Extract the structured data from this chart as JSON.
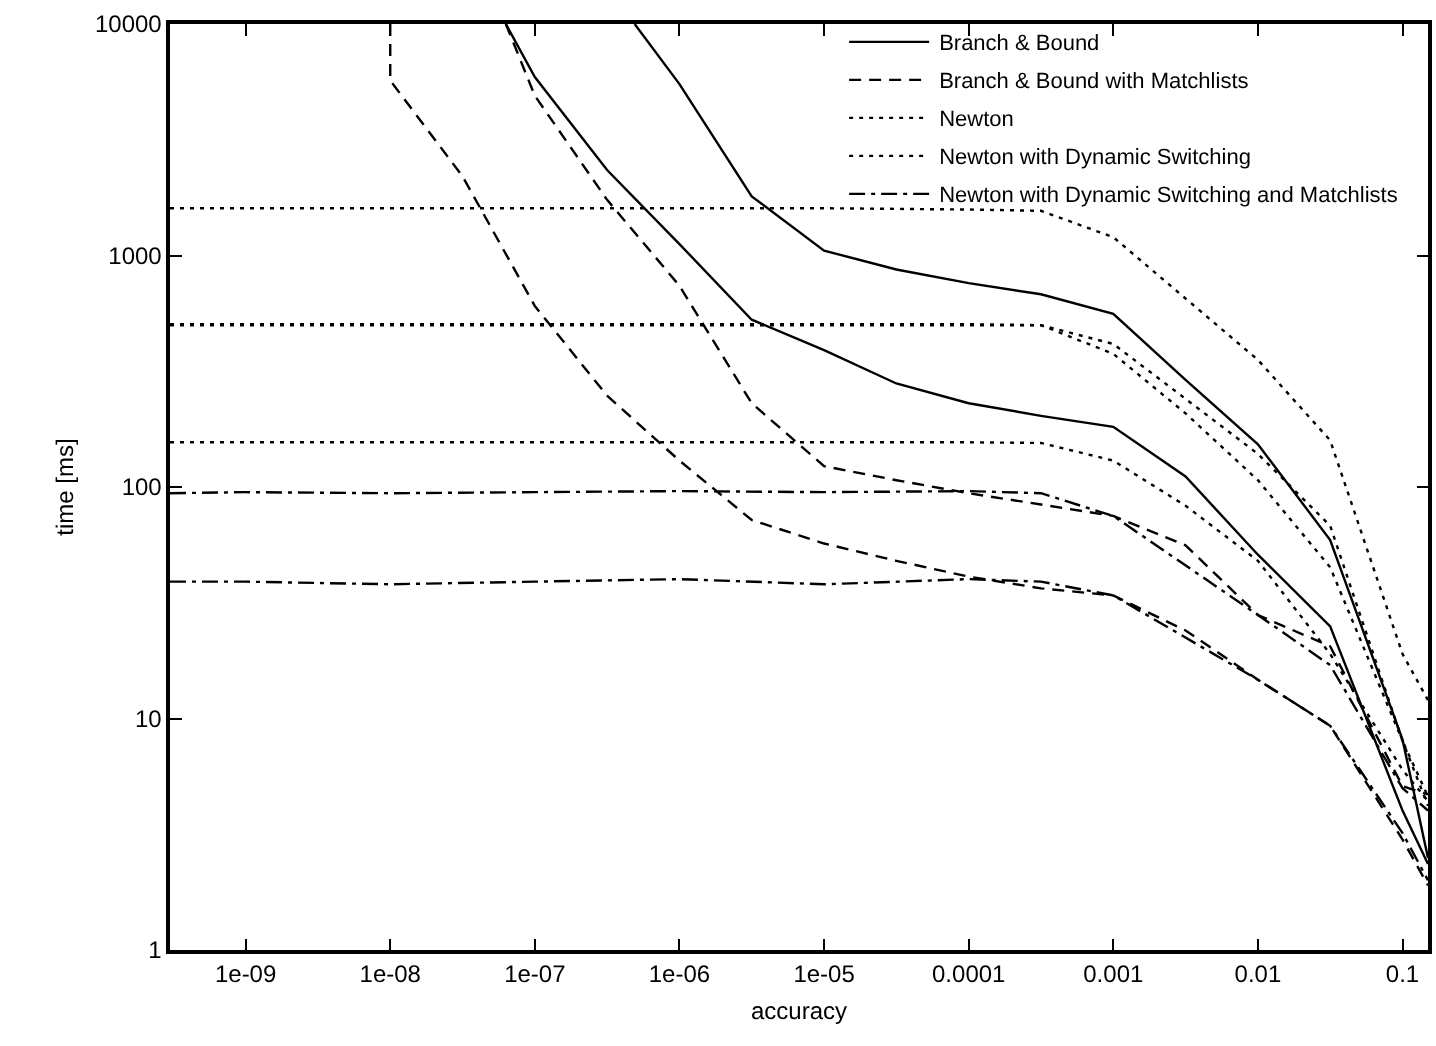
{
  "chart_data": {
    "type": "line",
    "xlabel": "accuracy",
    "ylabel": "time [ms]",
    "log": "xy",
    "legend": "top right",
    "marker": "none",
    "xlim": [
      3e-10,
      0.15
    ],
    "xticks": [
      {
        "value": 1e-09,
        "label": "1e-09"
      },
      {
        "value": 1e-08,
        "label": "1e-08"
      },
      {
        "value": 1e-07,
        "label": "1e-07"
      },
      {
        "value": 1e-06,
        "label": "1e-06"
      },
      {
        "value": 1e-05,
        "label": "1e-05"
      },
      0.0001,
      0.001,
      0.01,
      0.1
    ],
    "ylim": [
      1,
      10000
    ],
    "yticks": [
      1,
      10,
      100,
      1000,
      10000
    ],
    "series": [
      {
        "name": "Branch & Bound",
        "color": "#000000",
        "line_style": "solid",
        "x": [
          4.9e-07,
          1e-06,
          3.16e-06,
          1e-05,
          3.16e-05,
          0.0001,
          0.000316,
          0.001,
          0.00316,
          0.01,
          0.0316,
          0.1,
          0.15
        ],
        "values": [
          10000,
          5500,
          1800,
          1050,
          870,
          760,
          680,
          560,
          290,
          153,
          59,
          8.1,
          2.5
        ]
      },
      {
        "name": null,
        "color": "#000000",
        "line_style": "solid",
        "x": [
          6.3e-08,
          1e-07,
          3.16e-07,
          1e-06,
          3.16e-06,
          1e-05,
          3.16e-05,
          0.0001,
          0.000316,
          0.001,
          0.00316,
          0.01,
          0.0316,
          0.1,
          0.15
        ],
        "values": [
          10000,
          5900,
          2340,
          1120,
          528,
          390,
          280,
          230,
          203,
          182,
          111,
          51,
          25,
          4.0,
          2.35
        ]
      },
      {
        "name": "Branch & Bound with Matchlists",
        "color": "#000000",
        "line_style": "dashed",
        "x": [
          1e-08,
          1e-08,
          3.16e-08,
          1e-07,
          3.16e-07,
          1e-06,
          3.16e-06,
          1e-05,
          3.16e-05,
          0.0001,
          0.000316,
          0.001,
          0.00316,
          0.01,
          0.0316,
          0.1,
          0.15
        ],
        "values": [
          10000,
          5700,
          2200,
          605,
          248,
          130,
          72,
          57,
          48,
          41,
          36.5,
          34,
          24,
          14.7,
          9.3,
          3.0,
          1.9
        ]
      },
      {
        "name": null,
        "color": "#000000",
        "line_style": "dashed",
        "x": [
          6.3e-08,
          1e-07,
          3.16e-07,
          1e-06,
          3.16e-06,
          1e-05,
          3.16e-05,
          0.0001,
          0.000316,
          0.001,
          0.00316,
          0.01,
          0.0316,
          0.1,
          0.15
        ],
        "values": [
          10000,
          4900,
          1740,
          740,
          230,
          123,
          107,
          94,
          84,
          75,
          56,
          28,
          20.5,
          5.1,
          4.7
        ]
      },
      {
        "name": "Newton",
        "color": "#000000",
        "line_style": "dotted",
        "x": [
          3e-10,
          1e-09,
          1e-08,
          1e-07,
          1e-06,
          1e-05,
          0.0001,
          0.000316,
          0.001,
          0.01,
          0.0316,
          0.1,
          0.15
        ],
        "values": [
          1600,
          1600,
          1600,
          1600,
          1600,
          1600,
          1580,
          1560,
          1200,
          354,
          159,
          19,
          12
        ]
      },
      {
        "name": null,
        "color": "#000000",
        "line_style": "dotted",
        "x": [
          3e-10,
          1e-09,
          1e-08,
          1e-07,
          1e-06,
          1e-05,
          0.0001,
          0.000316,
          0.001,
          0.01,
          0.0316,
          0.1,
          0.15
        ],
        "values": [
          500,
          500,
          500,
          500,
          500,
          500,
          500,
          500,
          415,
          139,
          68,
          8,
          4.6
        ]
      },
      {
        "name": "Newton with Dynamic Switching",
        "color": "#000000",
        "line_style": "dotted",
        "x": [
          3e-10,
          1e-09,
          1e-08,
          1e-07,
          1e-06,
          1e-05,
          0.0001,
          0.000316,
          0.001,
          0.00316,
          0.01,
          0.0316,
          0.1,
          0.15
        ],
        "values": [
          505,
          505,
          505,
          505,
          505,
          505,
          505,
          500,
          376,
          208,
          107,
          45,
          8,
          4.2
        ]
      },
      {
        "name": null,
        "color": "#000000",
        "line_style": "dotted",
        "x": [
          3e-10,
          1e-09,
          1e-08,
          1e-07,
          1e-06,
          1e-05,
          0.0001,
          0.000316,
          0.001,
          0.00316,
          0.01,
          0.0316,
          0.1,
          0.15
        ],
        "values": [
          156,
          156,
          156,
          156,
          156,
          156,
          156,
          155,
          130,
          83,
          48,
          19,
          6,
          4.4
        ]
      },
      {
        "name": "Newton with Dynamic Switching and Matchlists",
        "color": "#000000",
        "line_style": "dashdot",
        "x": [
          3e-10,
          1e-09,
          1e-08,
          1e-07,
          1e-06,
          1e-05,
          0.0001,
          0.000316,
          0.001,
          0.01,
          0.0316,
          0.1,
          0.15
        ],
        "values": [
          94,
          95,
          94,
          95,
          96,
          95,
          96,
          94,
          75,
          28,
          17,
          5,
          4
        ]
      },
      {
        "name": null,
        "color": "#000000",
        "line_style": "dashdot",
        "x": [
          3e-10,
          1e-09,
          1e-08,
          1e-07,
          1e-06,
          1e-05,
          0.0001,
          0.000316,
          0.001,
          0.01,
          0.0316,
          0.1,
          0.15
        ],
        "values": [
          39,
          39,
          38,
          39,
          40,
          38,
          40,
          39,
          34,
          14.7,
          9.3,
          3.2,
          2
        ]
      }
    ]
  }
}
